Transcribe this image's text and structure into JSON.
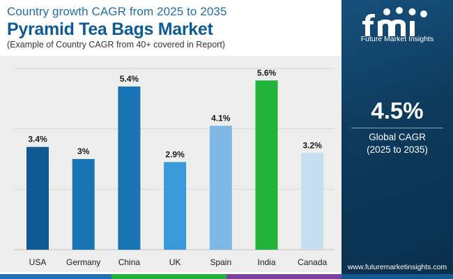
{
  "header": {
    "subtitle": "Country growth CAGR from 2025 to 2035",
    "title": "Pyramid Tea Bags Market",
    "note": "(Example of Country CAGR from 40+ covered in Report)"
  },
  "chart_data": {
    "type": "bar",
    "title": "Pyramid Tea Bags Market",
    "subtitle": "Country growth CAGR from 2025 to 2035",
    "categories": [
      "USA",
      "Germany",
      "China",
      "UK",
      "Spain",
      "India",
      "Canada"
    ],
    "values": [
      3.4,
      3.0,
      5.4,
      2.9,
      4.1,
      5.6,
      3.2
    ],
    "value_labels": [
      "3.4%",
      "3%",
      "5.4%",
      "2.9%",
      "4.1%",
      "5.6%",
      "3.2%"
    ],
    "bar_colors": [
      "#0f5a92",
      "#1a73b3",
      "#1a73b3",
      "#3a9ad9",
      "#7fb8e4",
      "#22b33a",
      "#c5dff0"
    ],
    "ylim": [
      0,
      6
    ],
    "grid": true,
    "xlabel": "",
    "ylabel": ""
  },
  "sidebar": {
    "logo_letters": "fmi",
    "brand_name": "Future Market Insights",
    "cagr_value": "4.5%",
    "cagr_label": "Global CAGR",
    "cagr_period": "(2025 to 2035)",
    "website": "www.futuremarketinsights.com"
  },
  "colors": {
    "title": "#0f5a92",
    "sidebar_bg": "#0d3a5c",
    "chart_bg": "#eeeeee",
    "footer_segments": [
      "#1a73b3",
      "#22b33a",
      "#7a3fa0",
      "#0f5a92"
    ]
  }
}
